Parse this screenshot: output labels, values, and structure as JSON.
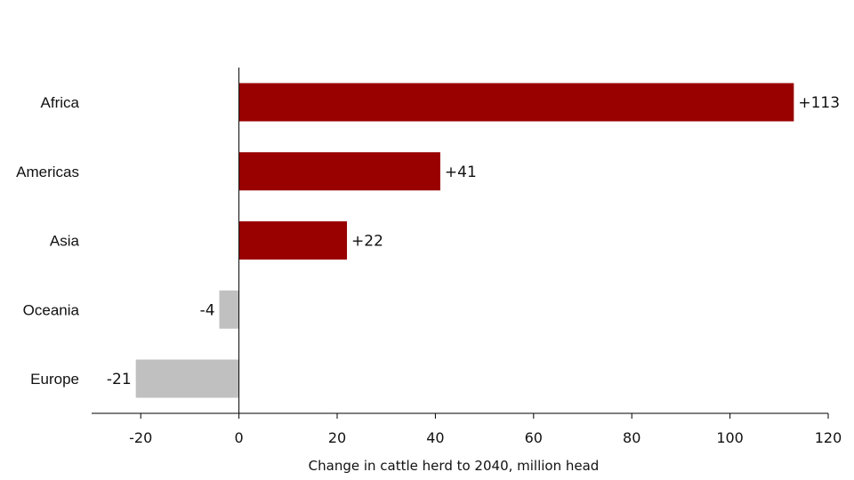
{
  "chart_data": {
    "type": "bar",
    "orientation": "horizontal",
    "categories": [
      "Africa",
      "Americas",
      "Asia",
      "Oceania",
      "Europe"
    ],
    "values": [
      113,
      41,
      22,
      -4,
      -21
    ],
    "data_labels": [
      "+113",
      "+41",
      "+22",
      "-4",
      "-21"
    ],
    "xlabel": "Change in cattle herd to 2040, million head",
    "xlim": [
      -30,
      120
    ],
    "xticks": [
      -20,
      0,
      20,
      40,
      60,
      80,
      100,
      120
    ],
    "grid": false,
    "legend": "none",
    "colors": {
      "positive": "#990000",
      "negative": "#c0c0c0",
      "axis": "#000000"
    }
  }
}
